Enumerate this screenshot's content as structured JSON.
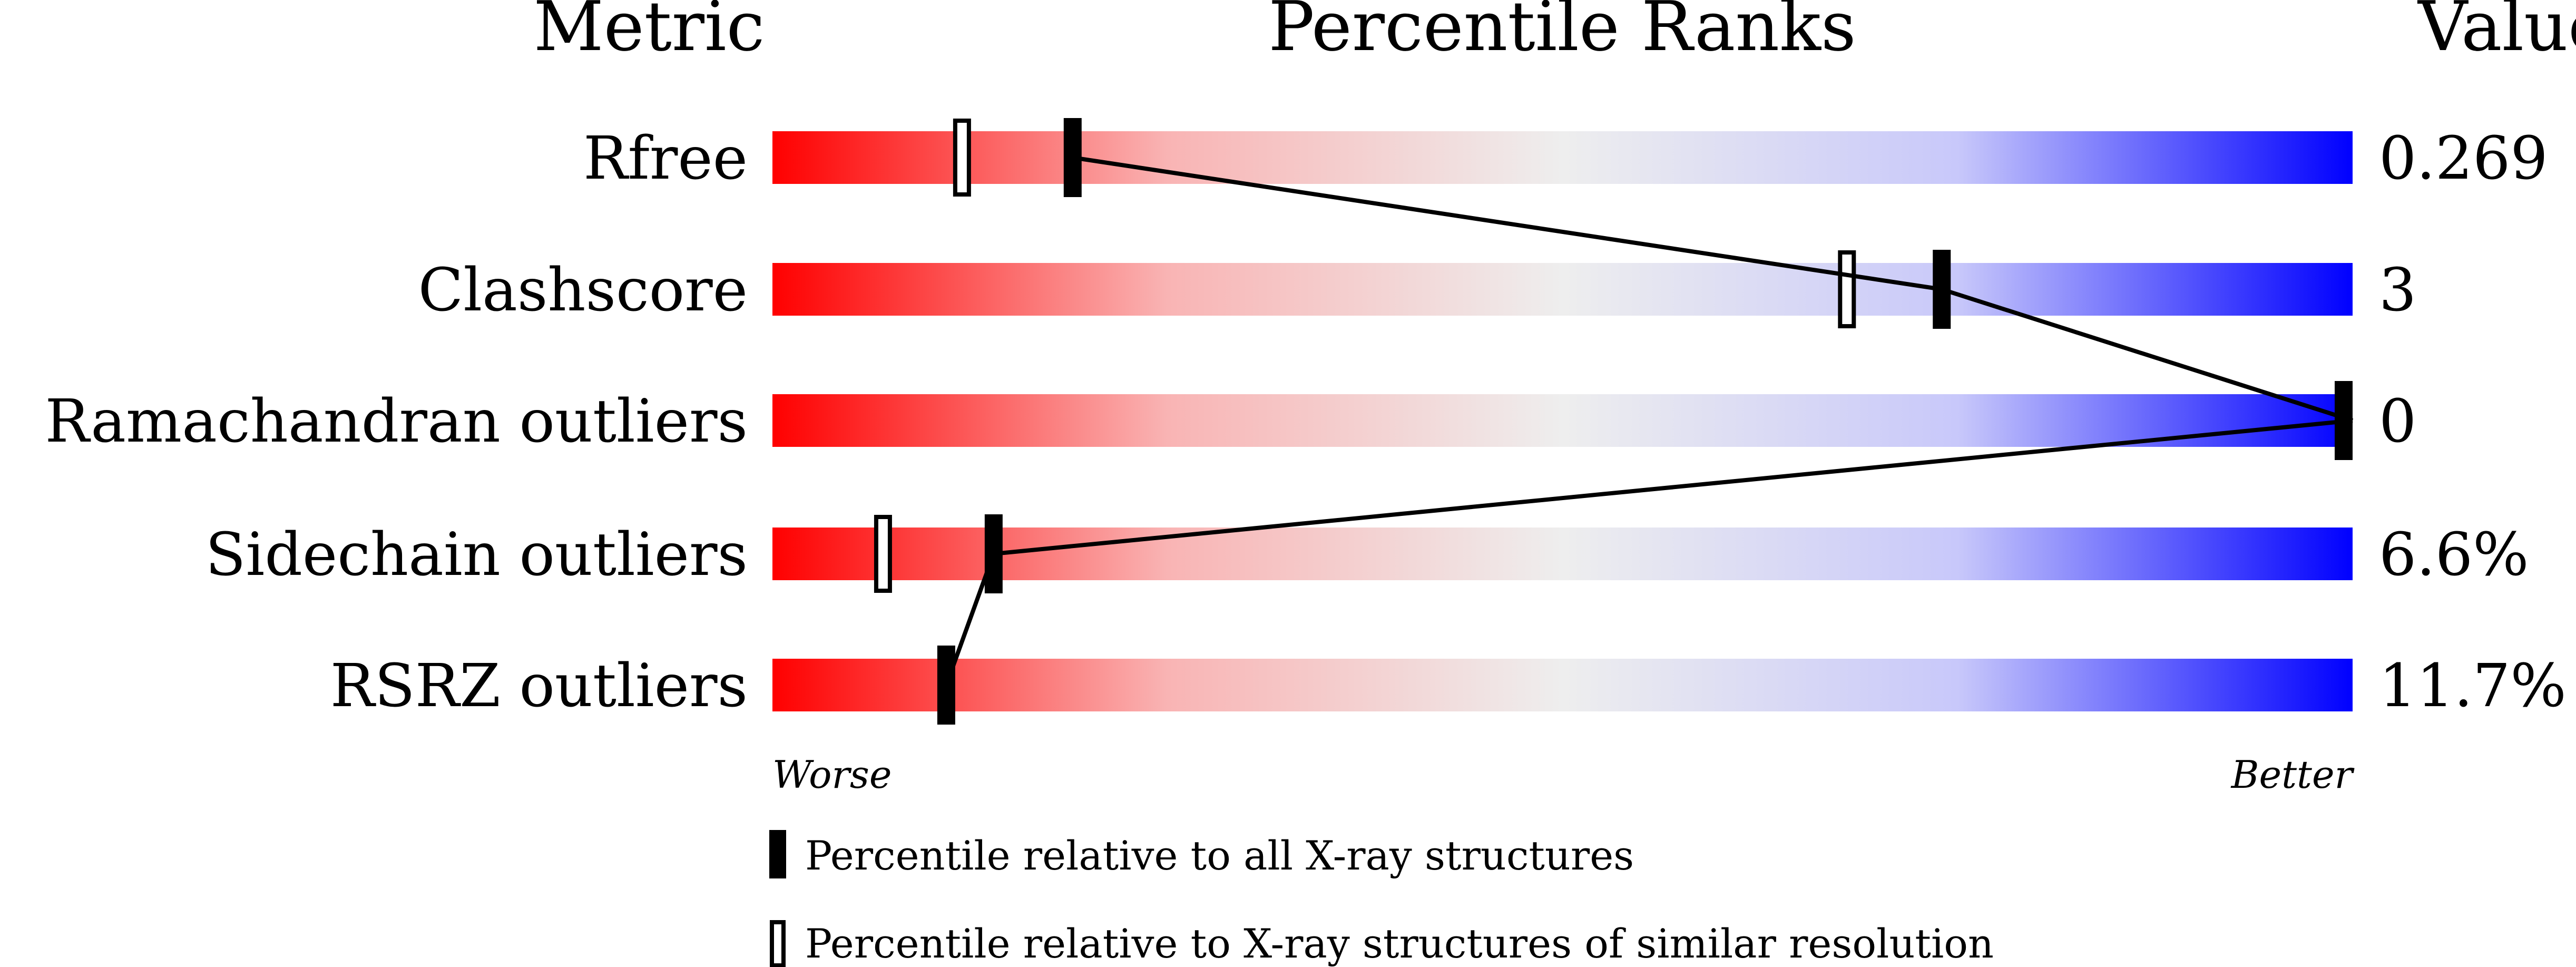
{
  "chart_data": {
    "type": "bar",
    "headers": {
      "metric": "Metric",
      "ranks": "Percentile Ranks",
      "value": "Value"
    },
    "axis": {
      "left": "Worse",
      "right": "Better",
      "range": [
        0,
        100
      ]
    },
    "metrics": [
      {
        "name": "Rfree",
        "value": "0.269",
        "percentile_all": 19,
        "percentile_similar": 12
      },
      {
        "name": "Clashscore",
        "value": "3",
        "percentile_all": 74,
        "percentile_similar": 68
      },
      {
        "name": "Ramachandran outliers",
        "value": "0",
        "percentile_all": 100,
        "percentile_similar": null
      },
      {
        "name": "Sidechain outliers",
        "value": "6.6%",
        "percentile_all": 14,
        "percentile_similar": 7
      },
      {
        "name": "RSRZ outliers",
        "value": "11.7%",
        "percentile_all": 11,
        "percentile_similar": null
      }
    ],
    "legend": [
      {
        "marker": "filled",
        "label": "Percentile relative to all X-ray structures"
      },
      {
        "marker": "open",
        "label": "Percentile relative to X-ray structures of similar resolution"
      }
    ],
    "colors": {
      "worse": "#ff0000",
      "middle": "#eeeeee",
      "better": "#0000ff"
    }
  }
}
